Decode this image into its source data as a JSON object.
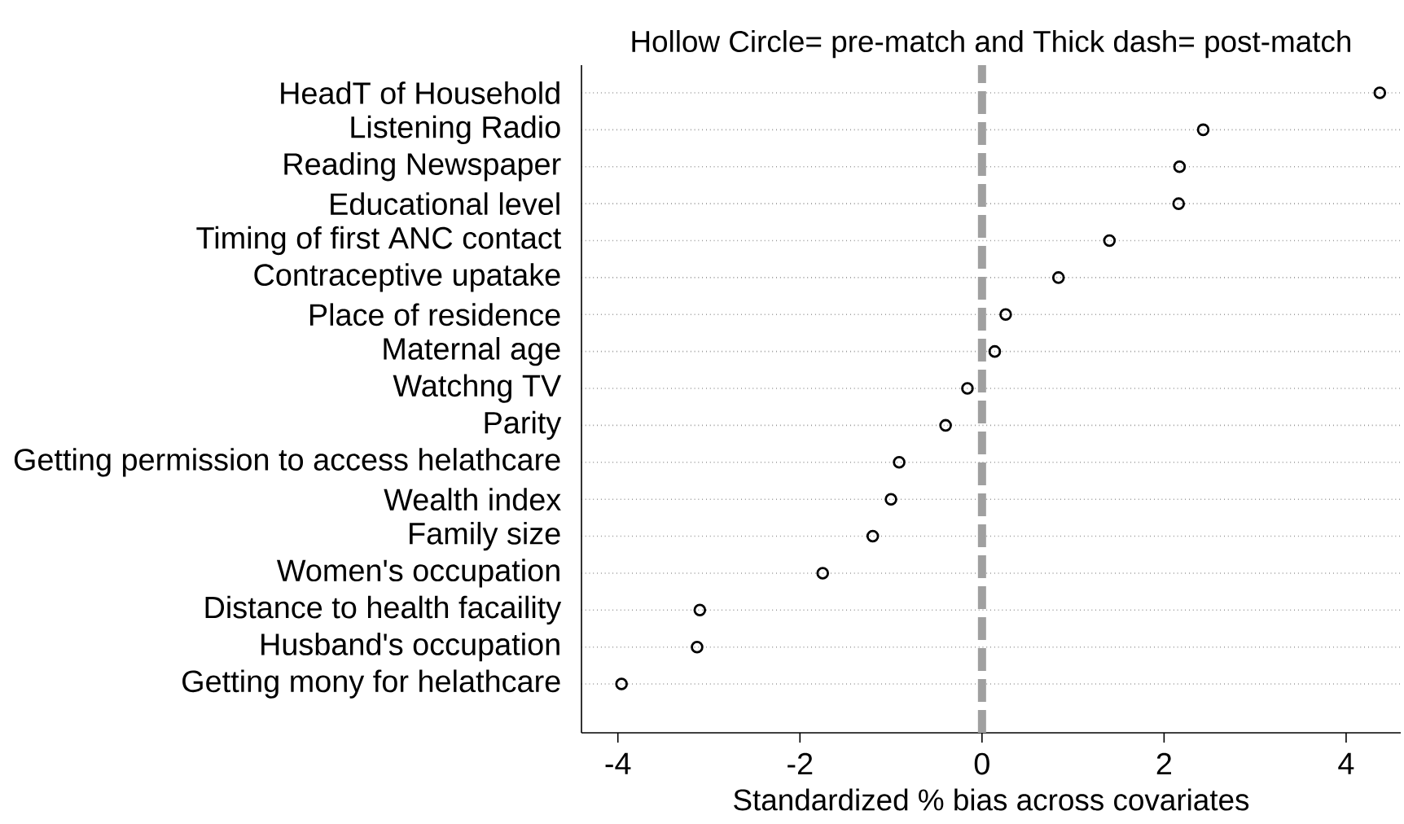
{
  "chart_data": {
    "type": "scatter",
    "orientation": "horizontal",
    "title": "Hollow Circle= pre-match and Thick dash= post-match",
    "xlabel": "Standardized % bias across covariates",
    "categories": [
      "HeadT of Household",
      "Listening Radio",
      "Reading Newspaper",
      "Educational level",
      "Timing of first ANC contact",
      "Contraceptive upatake",
      "Place of residence",
      "Maternal age",
      "Watchng TV",
      "Parity",
      "Getting permission to access helathcare",
      "Wealth index",
      "Family size",
      "Women's occupation",
      "Distance to health facaility",
      "Husband's occupation",
      "Getting mony for helathcare"
    ],
    "values": [
      4.37,
      2.43,
      2.17,
      2.16,
      1.4,
      0.84,
      0.26,
      0.14,
      -0.16,
      -0.4,
      -0.91,
      -1.0,
      -1.2,
      -1.75,
      -3.1,
      -3.13,
      -3.96
    ],
    "color": "#000000",
    "marker": "circle",
    "grid": "y",
    "xlim": [
      -4.4,
      4.6
    ],
    "xticks": [
      -4,
      -2,
      0,
      2,
      4
    ],
    "ref_lines": [
      {
        "axis": "x",
        "value": 0,
        "color": "#a0a0a0",
        "line_style": "dashed"
      }
    ]
  }
}
